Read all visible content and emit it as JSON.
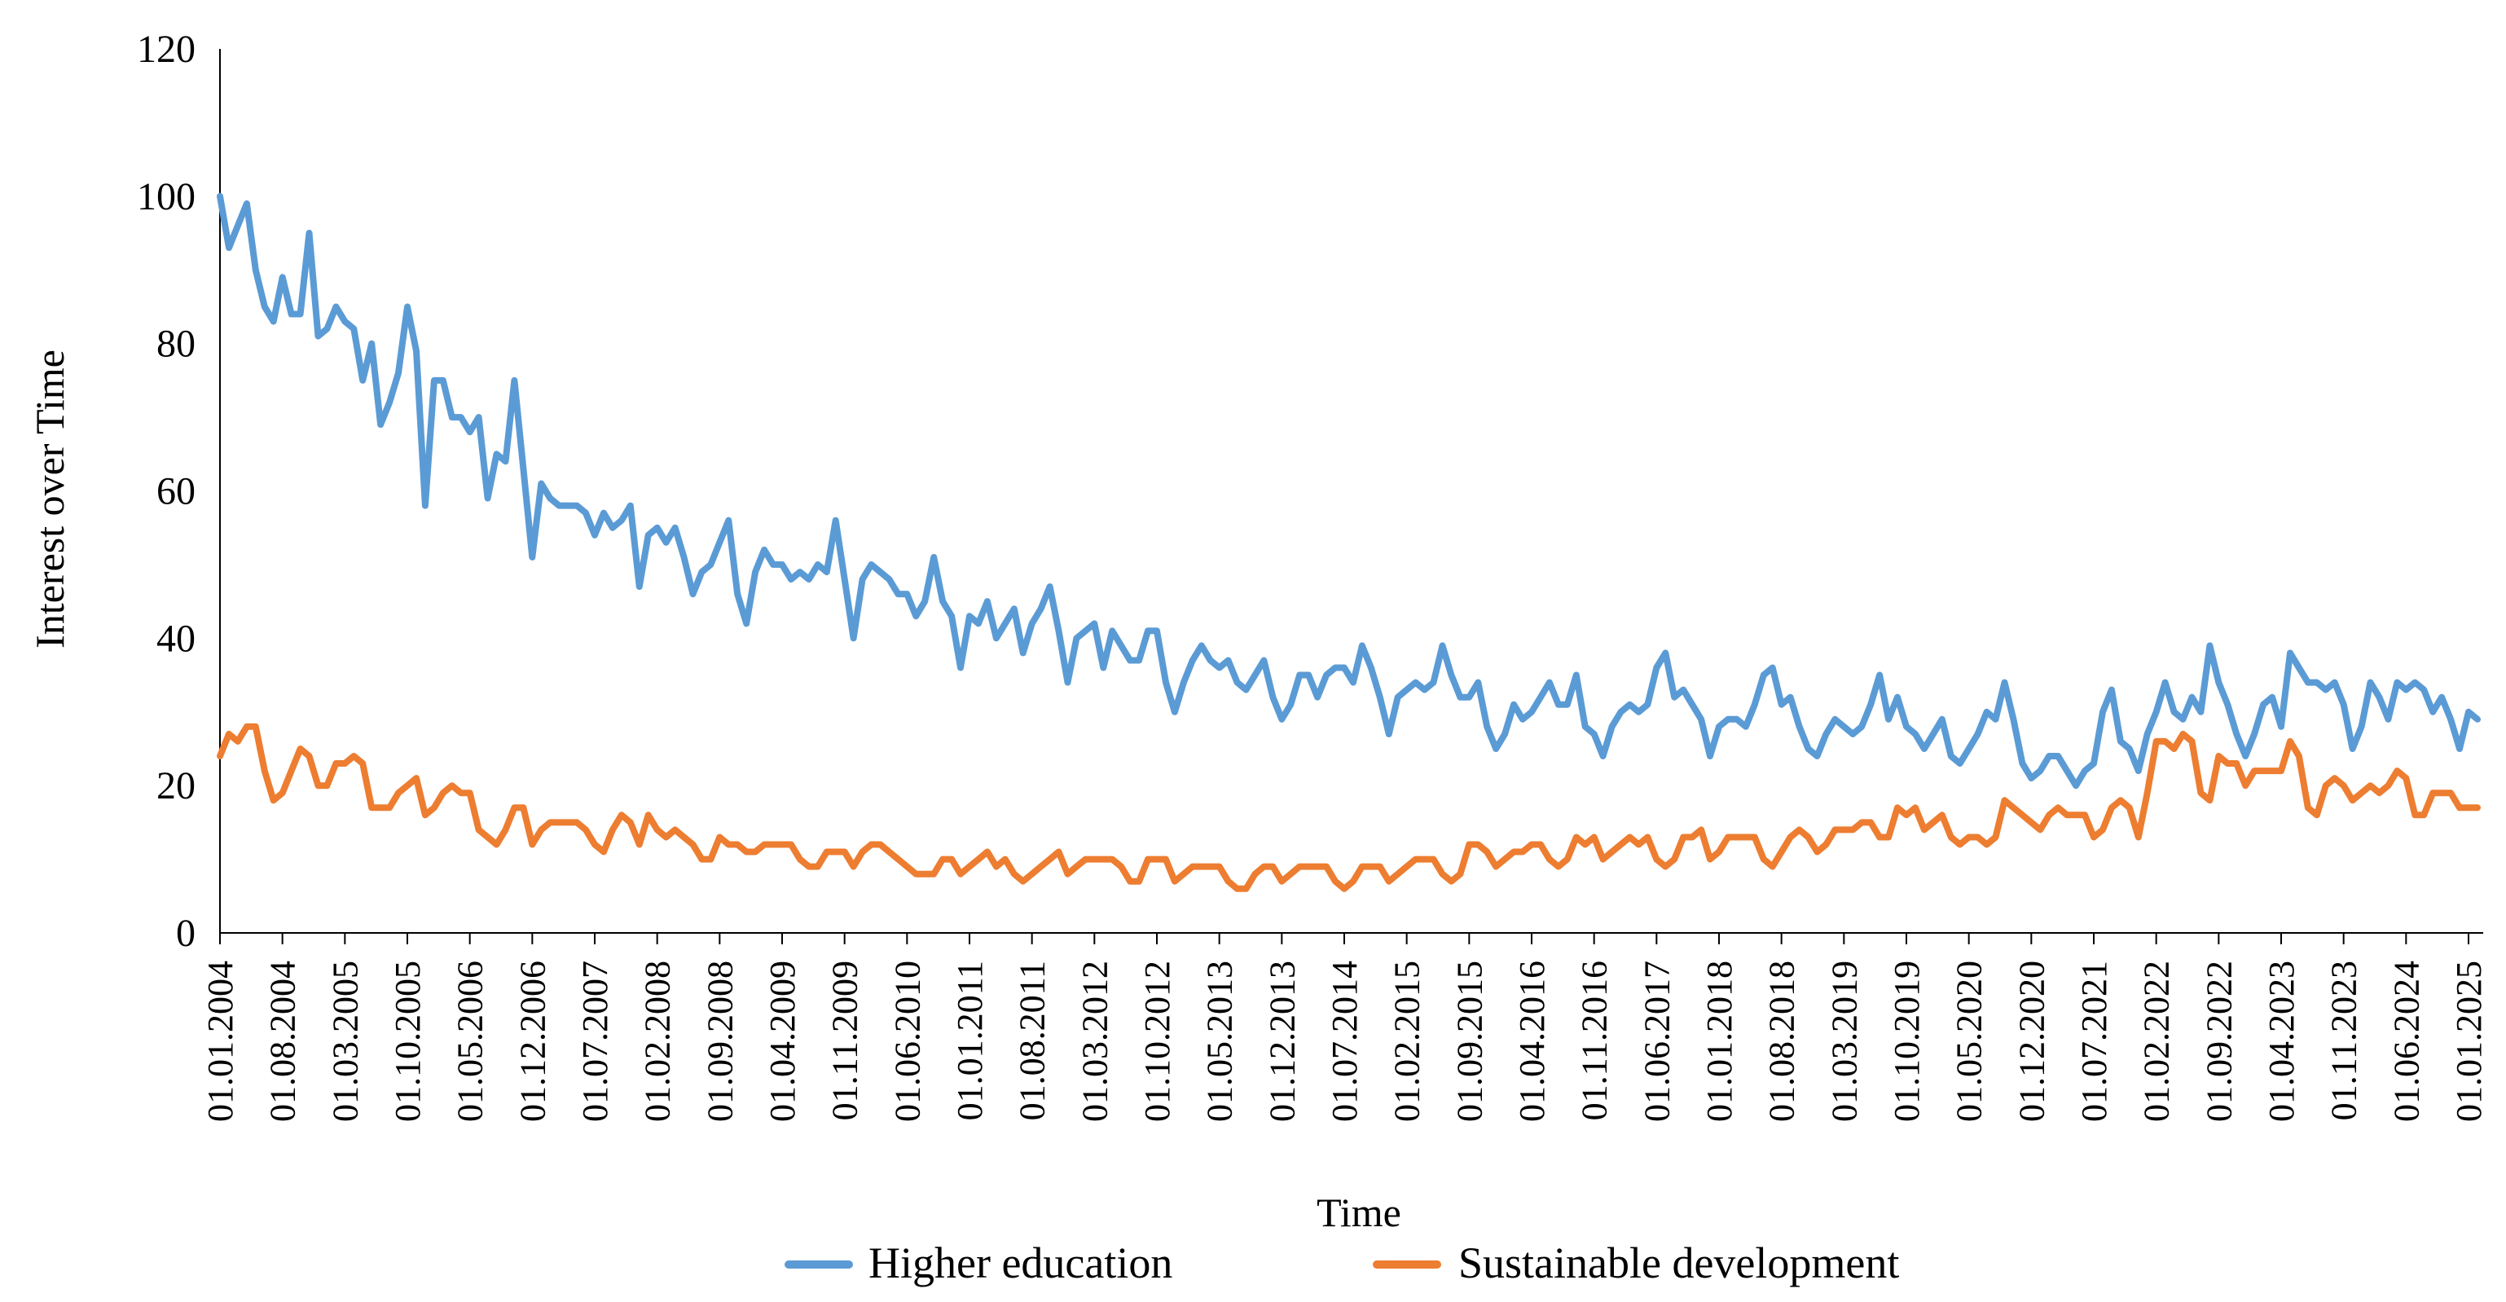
{
  "chart_data": {
    "type": "line",
    "title": "",
    "xlabel": "Time",
    "ylabel": "Interest over Time",
    "ylim": [
      0,
      120
    ],
    "yticks": [
      "0",
      "20",
      "40",
      "60",
      "80",
      "100",
      "120"
    ],
    "grid": false,
    "legend_position": "bottom",
    "x_start": "01.01.2004",
    "x_frequency": "monthly",
    "x_tick_interval_months": 7,
    "xtick_labels": [
      "01.01.2004",
      "01.08.2004",
      "01.03.2005",
      "01.10.2005",
      "01.05.2006",
      "01.12.2006",
      "01.07.2007",
      "01.02.2008",
      "01.09.2008",
      "01.04.2009",
      "01.11.2009",
      "01.06.2010",
      "01.01.2011",
      "01.08.2011",
      "01.03.2012",
      "01.10.2012",
      "01.05.2013",
      "01.12.2013",
      "01.07.2014",
      "01.02.2015",
      "01.09.2015",
      "01.04.2016",
      "01.11.2016",
      "01.06.2017",
      "01.01.2018",
      "01.08.2018",
      "01.03.2019",
      "01.10.2019",
      "01.05.2020",
      "01.12.2020",
      "01.07.2021",
      "01.02.2022",
      "01.09.2022",
      "01.04.2023",
      "01.11.2023",
      "01.06.2024",
      "01.01.2025"
    ],
    "series": [
      {
        "name": "Higher education",
        "color": "#5B9BD5",
        "values": [
          100,
          93,
          96,
          99,
          90,
          85,
          83,
          89,
          84,
          84,
          95,
          81,
          82,
          85,
          83,
          82,
          75,
          80,
          69,
          72,
          76,
          85,
          79,
          58,
          75,
          75,
          70,
          70,
          68,
          70,
          59,
          65,
          64,
          75,
          63,
          51,
          61,
          59,
          58,
          58,
          58,
          57,
          54,
          57,
          55,
          56,
          58,
          47,
          54,
          55,
          53,
          55,
          51,
          46,
          49,
          50,
          53,
          56,
          46,
          42,
          49,
          52,
          50,
          50,
          48,
          49,
          48,
          50,
          49,
          56,
          48,
          40,
          48,
          50,
          49,
          48,
          46,
          46,
          43,
          45,
          51,
          45,
          43,
          36,
          43,
          42,
          45,
          40,
          42,
          44,
          38,
          42,
          44,
          47,
          41,
          34,
          40,
          41,
          42,
          36,
          41,
          39,
          37,
          37,
          41,
          41,
          34,
          30,
          34,
          37,
          39,
          37,
          36,
          37,
          34,
          33,
          35,
          37,
          32,
          29,
          31,
          35,
          35,
          32,
          35,
          36,
          36,
          34,
          39,
          36,
          32,
          27,
          32,
          33,
          34,
          33,
          34,
          39,
          35,
          32,
          32,
          34,
          28,
          25,
          27,
          31,
          29,
          30,
          32,
          34,
          31,
          31,
          35,
          28,
          27,
          24,
          28,
          30,
          31,
          30,
          31,
          36,
          38,
          32,
          33,
          31,
          29,
          24,
          28,
          29,
          29,
          28,
          31,
          35,
          36,
          31,
          32,
          28,
          25,
          24,
          27,
          29,
          28,
          27,
          28,
          31,
          35,
          29,
          32,
          28,
          27,
          25,
          27,
          29,
          24,
          23,
          25,
          27,
          30,
          29,
          34,
          29,
          23,
          21,
          22,
          24,
          24,
          22,
          20,
          22,
          23,
          30,
          33,
          26,
          25,
          22,
          27,
          30,
          34,
          30,
          29,
          32,
          30,
          39,
          34,
          31,
          27,
          24,
          27,
          31,
          32,
          28,
          38,
          36,
          34,
          34,
          33,
          34,
          31,
          25,
          28,
          34,
          32,
          29,
          34,
          33,
          34,
          33,
          30,
          32,
          29,
          25,
          30,
          29
        ]
      },
      {
        "name": "Sustainable development",
        "color": "#ED7D31",
        "values": [
          24,
          27,
          26,
          28,
          28,
          22,
          18,
          19,
          22,
          25,
          24,
          20,
          20,
          23,
          23,
          24,
          23,
          17,
          17,
          17,
          19,
          20,
          21,
          16,
          17,
          19,
          20,
          19,
          19,
          14,
          13,
          12,
          14,
          17,
          17,
          12,
          14,
          15,
          15,
          15,
          15,
          14,
          12,
          11,
          14,
          16,
          15,
          12,
          16,
          14,
          13,
          14,
          13,
          12,
          10,
          10,
          13,
          12,
          12,
          11,
          11,
          12,
          12,
          12,
          12,
          10,
          9,
          9,
          11,
          11,
          11,
          9,
          11,
          12,
          12,
          11,
          10,
          9,
          8,
          8,
          8,
          10,
          10,
          8,
          9,
          10,
          11,
          9,
          10,
          8,
          7,
          8,
          9,
          10,
          11,
          8,
          9,
          10,
          10,
          10,
          10,
          9,
          7,
          7,
          10,
          10,
          10,
          7,
          8,
          9,
          9,
          9,
          9,
          7,
          6,
          6,
          8,
          9,
          9,
          7,
          8,
          9,
          9,
          9,
          9,
          7,
          6,
          7,
          9,
          9,
          9,
          7,
          8,
          9,
          10,
          10,
          10,
          8,
          7,
          8,
          12,
          12,
          11,
          9,
          10,
          11,
          11,
          12,
          12,
          10,
          9,
          10,
          13,
          12,
          13,
          10,
          11,
          12,
          13,
          12,
          13,
          10,
          9,
          10,
          13,
          13,
          14,
          10,
          11,
          13,
          13,
          13,
          13,
          10,
          9,
          11,
          13,
          14,
          13,
          11,
          12,
          14,
          14,
          14,
          15,
          15,
          13,
          13,
          17,
          16,
          17,
          14,
          15,
          16,
          13,
          12,
          13,
          13,
          12,
          13,
          18,
          17,
          16,
          15,
          14,
          16,
          17,
          16,
          16,
          16,
          13,
          14,
          17,
          18,
          17,
          13,
          19,
          26,
          26,
          25,
          27,
          26,
          19,
          18,
          24,
          23,
          23,
          20,
          22,
          22,
          22,
          22,
          26,
          24,
          17,
          16,
          20,
          21,
          20,
          18,
          19,
          20,
          19,
          20,
          22,
          21,
          16,
          16,
          19,
          19,
          19,
          17,
          17,
          17
        ]
      }
    ]
  }
}
